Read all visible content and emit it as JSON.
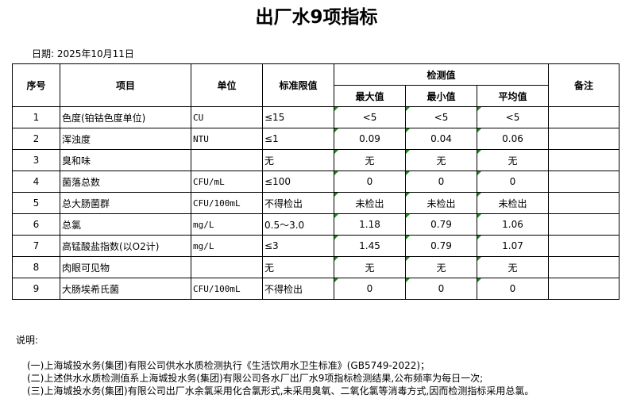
{
  "title": "出厂水9项指标",
  "date": "日期: 2025年10月11日",
  "headers": {
    "no": "序号",
    "item": "项目",
    "unit": "单位",
    "limit": "标准限值",
    "measured": "检测值",
    "max": "最大值",
    "min": "最小值",
    "avg": "平均值",
    "remark": "备注"
  },
  "rows": [
    {
      "no": "1",
      "item": "色度(铂钴色度单位)",
      "unit": "CU",
      "limit": "≤15",
      "max": "<5",
      "min": "<5",
      "avg": "<5"
    },
    {
      "no": "2",
      "item": "浑浊度",
      "unit": "NTU",
      "limit": "≤1",
      "max": "0.09",
      "min": "0.04",
      "avg": "0.06"
    },
    {
      "no": "3",
      "item": "臭和味",
      "unit": "",
      "limit": "无",
      "max": "无",
      "min": "无",
      "avg": "无"
    },
    {
      "no": "4",
      "item": "菌落总数",
      "unit": "CFU/mL",
      "limit": "≤100",
      "max": "0",
      "min": "0",
      "avg": "0"
    },
    {
      "no": "5",
      "item": "总大肠菌群",
      "unit": "CFU/100mL",
      "limit": "不得检出",
      "max": "未检出",
      "min": "未检出",
      "avg": "未检出"
    },
    {
      "no": "6",
      "item": "总氯",
      "unit": "mg/L",
      "limit": "0.5～3.0",
      "max": "1.18",
      "min": "0.79",
      "avg": "1.06"
    },
    {
      "no": "7",
      "item": "高锰酸盐指数(以O2计)",
      "unit": "mg/L",
      "limit": "≤3",
      "max": "1.45",
      "min": "0.79",
      "avg": "1.07"
    },
    {
      "no": "8",
      "item": "肉眼可见物",
      "unit": "",
      "limit": "无",
      "max": "无",
      "min": "无",
      "avg": "无"
    },
    {
      "no": "9",
      "item": "大肠埃希氏菌",
      "unit": "CFU/100mL",
      "limit": "不得检出",
      "max": "0",
      "min": "0",
      "avg": "0"
    }
  ],
  "notes": {
    "heading": "说明:",
    "lines": [
      "(一)上海城投水务(集团)有限公司供水水质检测执行《生活饮用水卫生标准》(GB5749-2022)；",
      "(二)上述供水水质检测值系上海城投水务(集团)有限公司各水厂出厂水9项指标检测结果,公布频率为每日一次;",
      "(三)上海城投水务(集团)有限公司出厂水余氯采用化合氯形式,未采用臭氧、二氧化氯等消毒方式,因而检测指标采用总氯。"
    ]
  }
}
